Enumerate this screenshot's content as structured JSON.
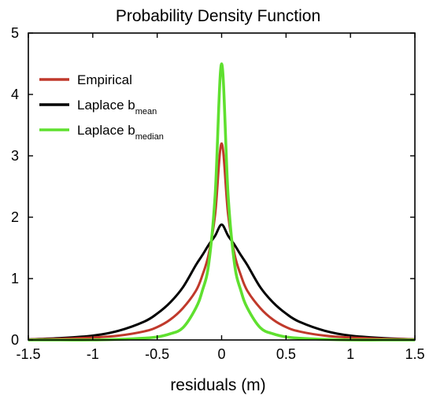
{
  "chart_data": {
    "type": "line",
    "title": "Probability Density Function",
    "xlabel": "residuals (m)",
    "ylabel": "",
    "xlim": [
      -1.5,
      1.5
    ],
    "ylim": [
      0,
      5
    ],
    "x_ticks": [
      "-1.5",
      "-1",
      "-0.5",
      "0",
      "0.5",
      "1",
      "1.5"
    ],
    "y_ticks": [
      "0",
      "1",
      "2",
      "3",
      "4",
      "5"
    ],
    "grid": false,
    "legend_position": "top-left",
    "series": [
      {
        "name": "Empirical",
        "legend_main": "Empirical",
        "legend_sub": "",
        "color": "#c0392b",
        "x": [
          -1.5,
          -1.25,
          -1.0,
          -0.8,
          -0.6,
          -0.5,
          -0.4,
          -0.3,
          -0.2,
          -0.15,
          -0.1,
          -0.05,
          0.0,
          0.05,
          0.1,
          0.15,
          0.2,
          0.3,
          0.4,
          0.5,
          0.6,
          0.8,
          1.0,
          1.25,
          1.5
        ],
        "values": [
          0.01,
          0.02,
          0.04,
          0.07,
          0.14,
          0.21,
          0.33,
          0.52,
          0.8,
          1.05,
          1.4,
          2.05,
          3.2,
          2.05,
          1.4,
          1.05,
          0.8,
          0.52,
          0.33,
          0.21,
          0.14,
          0.07,
          0.04,
          0.02,
          0.01
        ]
      },
      {
        "name": "Laplace b_mean",
        "legend_main": "Laplace b",
        "legend_sub": "mean",
        "color": "#000000",
        "x": [
          -1.5,
          -1.25,
          -1.0,
          -0.8,
          -0.6,
          -0.5,
          -0.4,
          -0.3,
          -0.2,
          -0.15,
          -0.1,
          -0.05,
          0.0,
          0.05,
          0.1,
          0.15,
          0.2,
          0.3,
          0.4,
          0.5,
          0.6,
          0.8,
          1.0,
          1.25,
          1.5
        ],
        "values": [
          0.01,
          0.03,
          0.07,
          0.15,
          0.3,
          0.43,
          0.61,
          0.86,
          1.22,
          1.38,
          1.55,
          1.7,
          1.88,
          1.7,
          1.55,
          1.38,
          1.22,
          0.86,
          0.61,
          0.43,
          0.3,
          0.15,
          0.07,
          0.03,
          0.01
        ]
      },
      {
        "name": "Laplace b_median",
        "legend_main": "Laplace b",
        "legend_sub": "median",
        "color": "#5fe02f",
        "x": [
          -1.5,
          -1.25,
          -1.0,
          -0.8,
          -0.6,
          -0.5,
          -0.4,
          -0.3,
          -0.2,
          -0.15,
          -0.1,
          -0.05,
          0.0,
          0.05,
          0.1,
          0.15,
          0.2,
          0.3,
          0.4,
          0.5,
          0.6,
          0.8,
          1.0,
          1.25,
          1.5
        ],
        "values": [
          0.0,
          0.0,
          0.0,
          0.01,
          0.03,
          0.05,
          0.1,
          0.2,
          0.52,
          0.8,
          1.24,
          2.37,
          4.5,
          2.37,
          1.24,
          0.8,
          0.52,
          0.2,
          0.1,
          0.05,
          0.03,
          0.01,
          0.0,
          0.0,
          0.0
        ]
      }
    ]
  }
}
